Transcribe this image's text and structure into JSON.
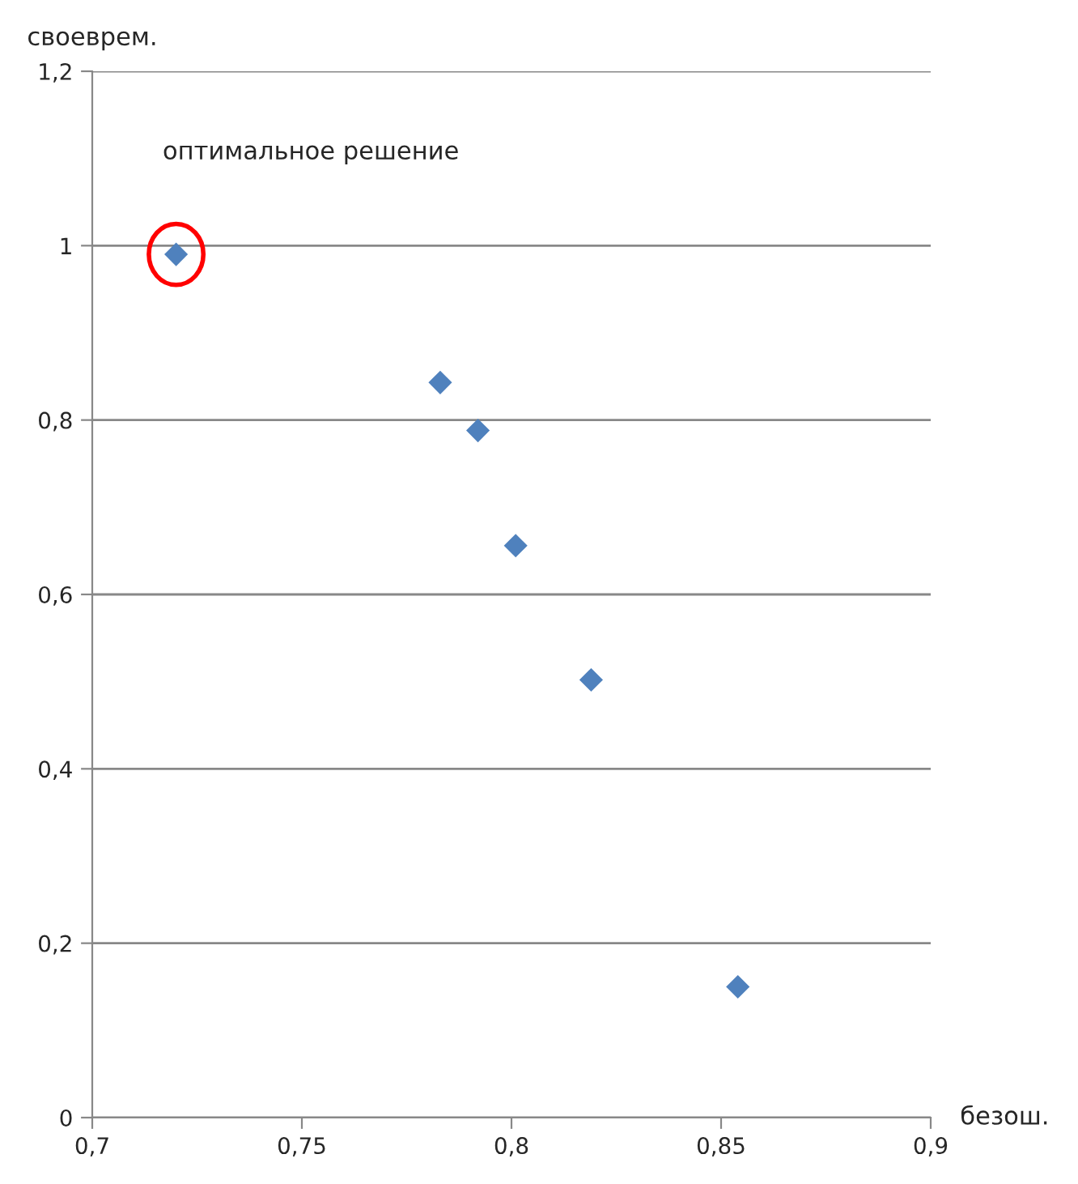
{
  "chart_data": {
    "type": "scatter",
    "xlabel": "безош.",
    "ylabel": "своеврем.",
    "x": [
      0.72,
      0.783,
      0.792,
      0.801,
      0.819,
      0.854
    ],
    "series": [
      {
        "color": "#4f81bd",
        "values": [
          0.99,
          0.843,
          0.788,
          0.656,
          0.502,
          0.15
        ]
      }
    ],
    "marker": "diamond",
    "xlim": [
      0.7,
      0.9
    ],
    "xticks": [
      {
        "value": 0.7,
        "label": "0,7"
      },
      {
        "value": 0.75,
        "label": "0,75"
      },
      {
        "value": 0.8,
        "label": "0,8"
      },
      {
        "value": 0.85,
        "label": "0,85"
      },
      {
        "value": 0.9,
        "label": "0,9"
      }
    ],
    "ylim": [
      0,
      1.2
    ],
    "yticks": [
      0,
      {
        "value": 0.2,
        "label": "0,2"
      },
      {
        "value": 0.4,
        "label": "0,4"
      },
      {
        "value": 0.6,
        "label": "0,6"
      },
      {
        "value": 0.8,
        "label": "0,8"
      },
      1,
      {
        "value": 1.2,
        "label": "1,2"
      }
    ],
    "grid": "y",
    "annotations": [
      "оптимальное решение"
    ]
  }
}
